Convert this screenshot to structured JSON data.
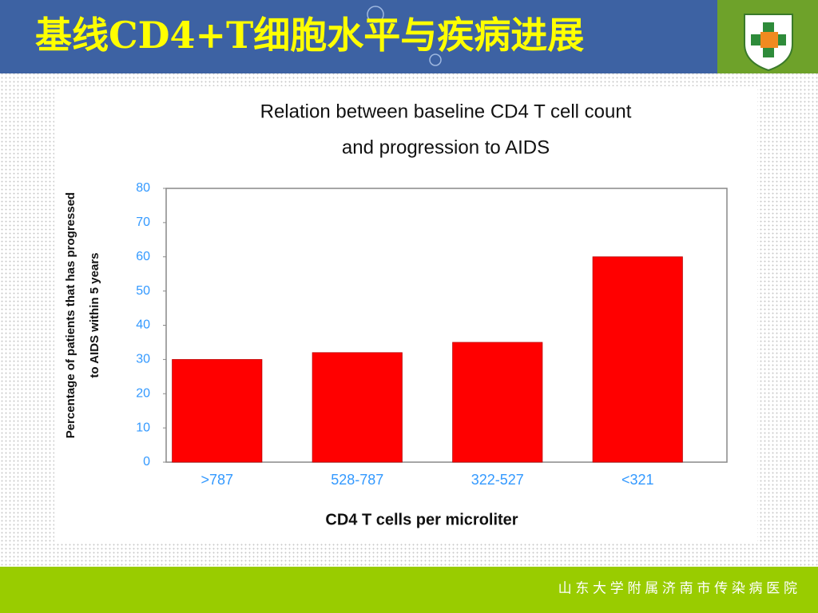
{
  "slide_title": "基线CD4+T细胞水平与疾病进展",
  "footer": "山 东 大 学 附 属 济 南 市 传 染 病 医 院",
  "chart_data": {
    "type": "bar",
    "title": [
      "Relation between baseline CD4 T cell count",
      "and progression to AIDS"
    ],
    "ylabel": [
      "Percentage of patients that has progressed",
      "to AIDS within 5 years"
    ],
    "xlabel": "CD4 T cells per microliter",
    "categories": [
      ">787",
      "528-787",
      "322-527",
      "<321"
    ],
    "values": [
      30,
      32,
      35,
      60
    ],
    "color": "#ff0000",
    "ylim": [
      0,
      80
    ],
    "yticks": [
      0,
      10,
      20,
      30,
      40,
      50,
      60,
      70,
      80
    ],
    "grid": false
  }
}
